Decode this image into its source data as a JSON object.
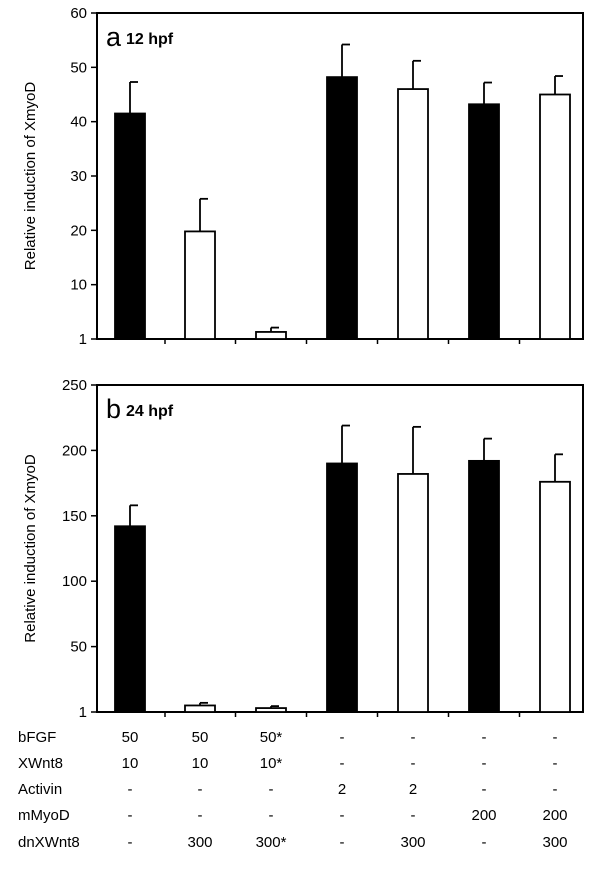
{
  "chart_data": [
    {
      "type": "bar",
      "panel_label": "a",
      "title": "12 hpf",
      "ylabel": "Relative induction of XmyoD",
      "ylim": [
        0,
        60
      ],
      "yticks": [
        1,
        10,
        20,
        30,
        40,
        50,
        60
      ],
      "grid": false,
      "values": [
        41.5,
        19.8,
        1.3,
        48.2,
        46.0,
        43.2,
        45.0
      ],
      "errors": [
        5.8,
        6.0,
        0.8,
        6.0,
        5.2,
        4.0,
        3.4
      ],
      "fills": [
        "filled",
        "open",
        "open",
        "filled",
        "open",
        "filled",
        "open"
      ]
    },
    {
      "type": "bar",
      "panel_label": "b",
      "title": "24 hpf",
      "ylabel": "Relative induction of XmyoD",
      "ylim": [
        0,
        250
      ],
      "yticks": [
        1,
        50,
        100,
        150,
        200,
        250
      ],
      "grid": false,
      "values": [
        142,
        5,
        3,
        190,
        182,
        192,
        176
      ],
      "errors": [
        16,
        2,
        1.5,
        29,
        36,
        17,
        21
      ],
      "fills": [
        "filled",
        "open",
        "open",
        "filled",
        "open",
        "filled",
        "open"
      ]
    }
  ],
  "conditions": [
    {
      "label": "bFGF",
      "values": [
        "50",
        "50",
        "50*",
        "-",
        "-",
        "-",
        "-"
      ]
    },
    {
      "label": "XWnt8",
      "values": [
        "10",
        "10",
        "10*",
        "-",
        "-",
        "-",
        "-"
      ]
    },
    {
      "label": "Activin",
      "values": [
        "-",
        "-",
        "-",
        "2",
        "2",
        "-",
        "-"
      ]
    },
    {
      "label": "mMyoD",
      "values": [
        "-",
        "-",
        "-",
        "-",
        "-",
        "200",
        "200"
      ]
    },
    {
      "label": "dnXWnt8",
      "values": [
        "-",
        "300",
        "300*",
        "-",
        "300",
        "-",
        "300"
      ]
    }
  ],
  "colors": {
    "filled": "#000000",
    "open": "#ffffff",
    "axis": "#000000"
  }
}
